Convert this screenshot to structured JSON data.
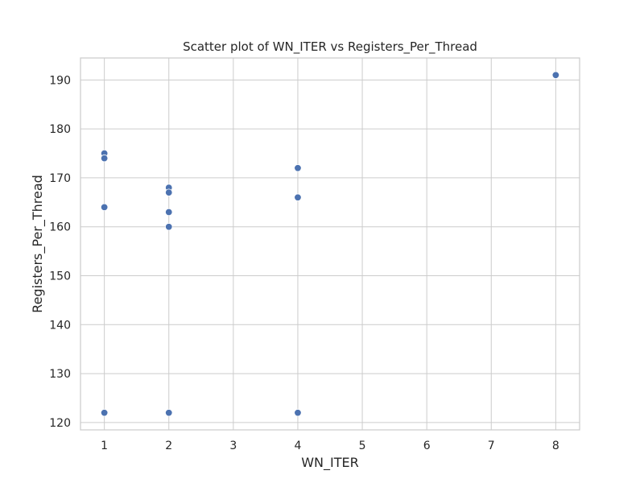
{
  "chart_data": {
    "type": "scatter",
    "title": "Scatter plot of WN_ITER vs Registers_Per_Thread",
    "xlabel": "WN_ITER",
    "ylabel": "Registers_Per_Thread",
    "xlim": [
      0.63,
      8.37
    ],
    "ylim": [
      118.5,
      194.5
    ],
    "x_ticks": [
      1,
      2,
      3,
      4,
      5,
      6,
      7,
      8
    ],
    "y_ticks": [
      120,
      130,
      140,
      150,
      160,
      170,
      180,
      190
    ],
    "grid": true,
    "legend": "none",
    "series": [
      {
        "color": "#4c72b0",
        "points": [
          {
            "x": 1,
            "y": 175
          },
          {
            "x": 1,
            "y": 174
          },
          {
            "x": 1,
            "y": 164
          },
          {
            "x": 1,
            "y": 122
          },
          {
            "x": 2,
            "y": 168
          },
          {
            "x": 2,
            "y": 167
          },
          {
            "x": 2,
            "y": 163
          },
          {
            "x": 2,
            "y": 160
          },
          {
            "x": 2,
            "y": 122
          },
          {
            "x": 4,
            "y": 172
          },
          {
            "x": 4,
            "y": 166
          },
          {
            "x": 4,
            "y": 122
          },
          {
            "x": 8,
            "y": 191
          }
        ]
      }
    ]
  }
}
